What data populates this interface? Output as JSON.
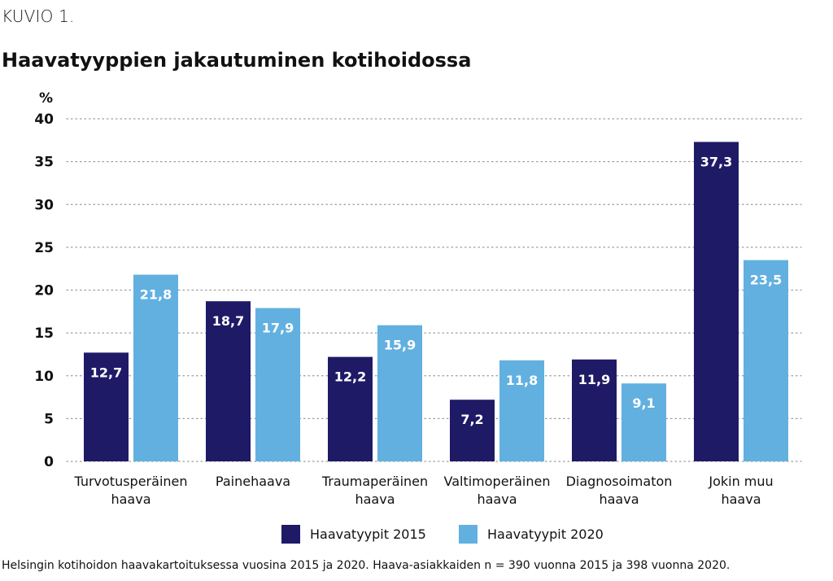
{
  "header": {
    "figure_label": "KUVIO 1.",
    "title": "Haavatyyppien jakautuminen kotihoidossa"
  },
  "footnote": "Helsingin kotihoidon haavakartoituksessa vuosina 2015 ja 2020. Haava-asiakkaiden n = 390 vuonna 2015 ja 398 vuonna 2020.",
  "colors": {
    "series_2015": "#1f1a66",
    "series_2020": "#62b0e0",
    "grid": "#9a9a9a",
    "label_text": "#ffffff"
  },
  "chart_data": {
    "type": "bar",
    "title": "Haavatyyppien jakautuminen kotihoidossa",
    "ylabel": "%",
    "xlabel": "",
    "ylim": [
      0,
      40
    ],
    "yticks": [
      0,
      5,
      10,
      15,
      20,
      25,
      30,
      35,
      40
    ],
    "grid": "horizontal dotted",
    "legend": "bottom",
    "categories": [
      [
        "Turvotusperäinen",
        "haava"
      ],
      [
        "Painehaava"
      ],
      [
        "Traumaperäinen",
        "haava"
      ],
      [
        "Valtimoperäinen",
        "haava"
      ],
      [
        "Diagnosoimaton",
        "haava"
      ],
      [
        "Jokin muu",
        "haava"
      ]
    ],
    "series": [
      {
        "name": "Haavatyypit 2015",
        "values": [
          12.7,
          18.7,
          12.2,
          7.2,
          11.9,
          37.3
        ],
        "labels": [
          "12,7",
          "18,7",
          "12,2",
          "7,2",
          "11,9",
          "37,3"
        ]
      },
      {
        "name": "Haavatyypit 2020",
        "values": [
          21.8,
          17.9,
          15.9,
          11.8,
          9.1,
          23.5
        ],
        "labels": [
          "21,8",
          "17,9",
          "15,9",
          "11,8",
          "9,1",
          "23,5"
        ]
      }
    ]
  }
}
